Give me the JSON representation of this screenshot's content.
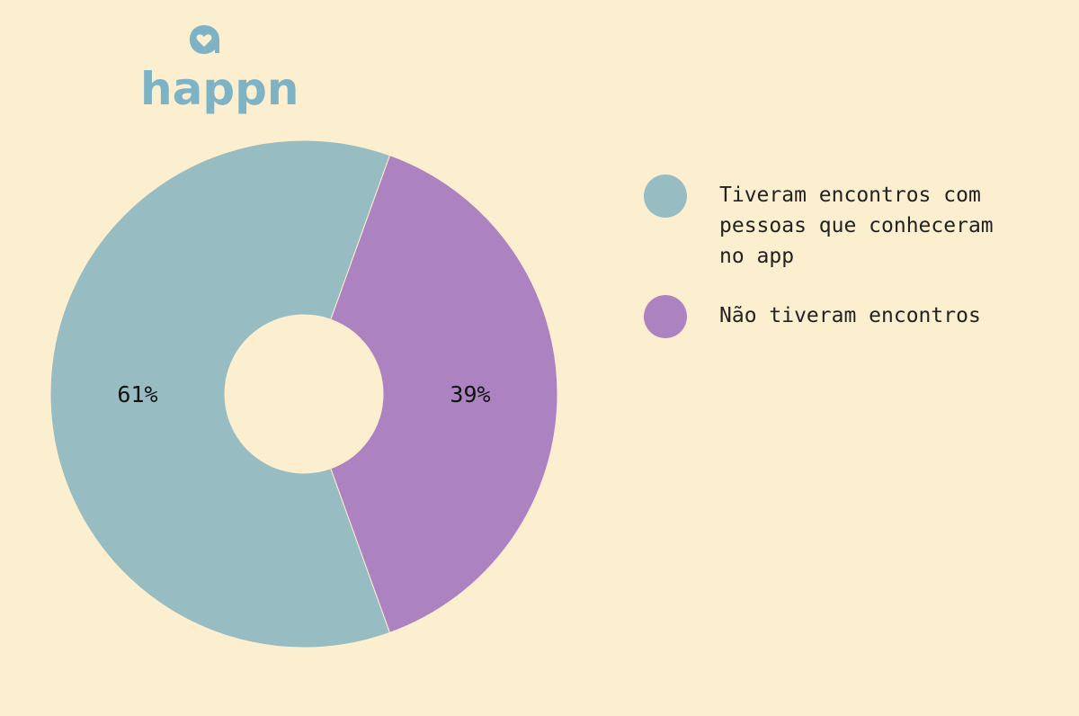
{
  "logo": {
    "text": "happn",
    "color": "#7eb3c5"
  },
  "chart_data": {
    "type": "pie",
    "donut": true,
    "categories": [
      "Tiveram encontros com pessoas que conheceram no app",
      "Não tiveram encontros"
    ],
    "values": [
      61,
      39
    ],
    "labels": [
      "61%",
      "39%"
    ],
    "colors": [
      "#97bcc2",
      "#ad82c0"
    ],
    "legend_position": "right"
  },
  "legend": {
    "items": [
      {
        "label": "Tiveram encontros com pessoas que conheceram no app",
        "color": "#97bcc2"
      },
      {
        "label": "Não tiveram encontros",
        "color": "#ad82c0"
      }
    ]
  }
}
